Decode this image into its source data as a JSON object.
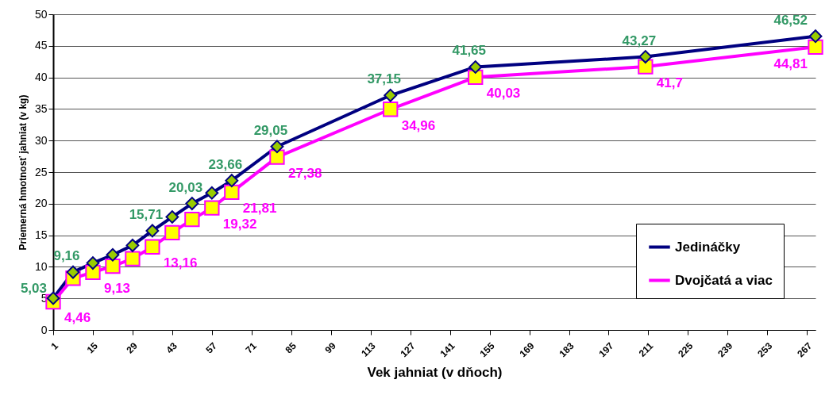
{
  "chart_data": {
    "type": "line",
    "xlabel": "Vek jahniat (v dňoch)",
    "ylabel": "Priemerná hmotnosť jahniat (v kg)",
    "x": [
      1,
      8,
      15,
      22,
      29,
      36,
      43,
      50,
      57,
      64,
      80,
      120,
      150,
      210,
      270
    ],
    "series": [
      {
        "name": "Jedináčky",
        "color": "#000080",
        "marker": "diamond",
        "values": [
          5.03,
          9.16,
          10.6,
          11.9,
          13.4,
          15.71,
          17.9,
          20.03,
          21.7,
          23.66,
          29.05,
          37.15,
          41.65,
          43.27,
          46.52
        ],
        "value_labels": [
          "5,03",
          "9,16",
          null,
          null,
          null,
          "15,71",
          null,
          "20,03",
          null,
          "23,66",
          "29,05",
          "37,15",
          "41,65",
          "43,27",
          "46,52"
        ]
      },
      {
        "name": "Dvojčatá a viac",
        "color": "#ff00ff",
        "marker": "square",
        "values": [
          4.46,
          8.2,
          9.13,
          10.1,
          11.3,
          13.16,
          15.4,
          17.5,
          19.32,
          21.81,
          27.38,
          34.96,
          40.03,
          41.7,
          44.81
        ],
        "value_labels": [
          "4,46",
          null,
          "9,13",
          null,
          null,
          "13,16",
          null,
          null,
          "19,32",
          "21,81",
          "27,38",
          "34,96",
          "40,03",
          "41,7",
          "44,81"
        ]
      }
    ],
    "xlim": [
      1,
      270
    ],
    "xticks": [
      1,
      15,
      29,
      43,
      57,
      71,
      85,
      99,
      113,
      127,
      141,
      155,
      169,
      183,
      197,
      211,
      225,
      239,
      253,
      267
    ],
    "ylim": [
      0,
      50
    ],
    "yticks": [
      0,
      5,
      10,
      15,
      20,
      25,
      30,
      35,
      40,
      45,
      50
    ],
    "grid": "y",
    "legend": "bottom right",
    "line_style": "solid"
  }
}
